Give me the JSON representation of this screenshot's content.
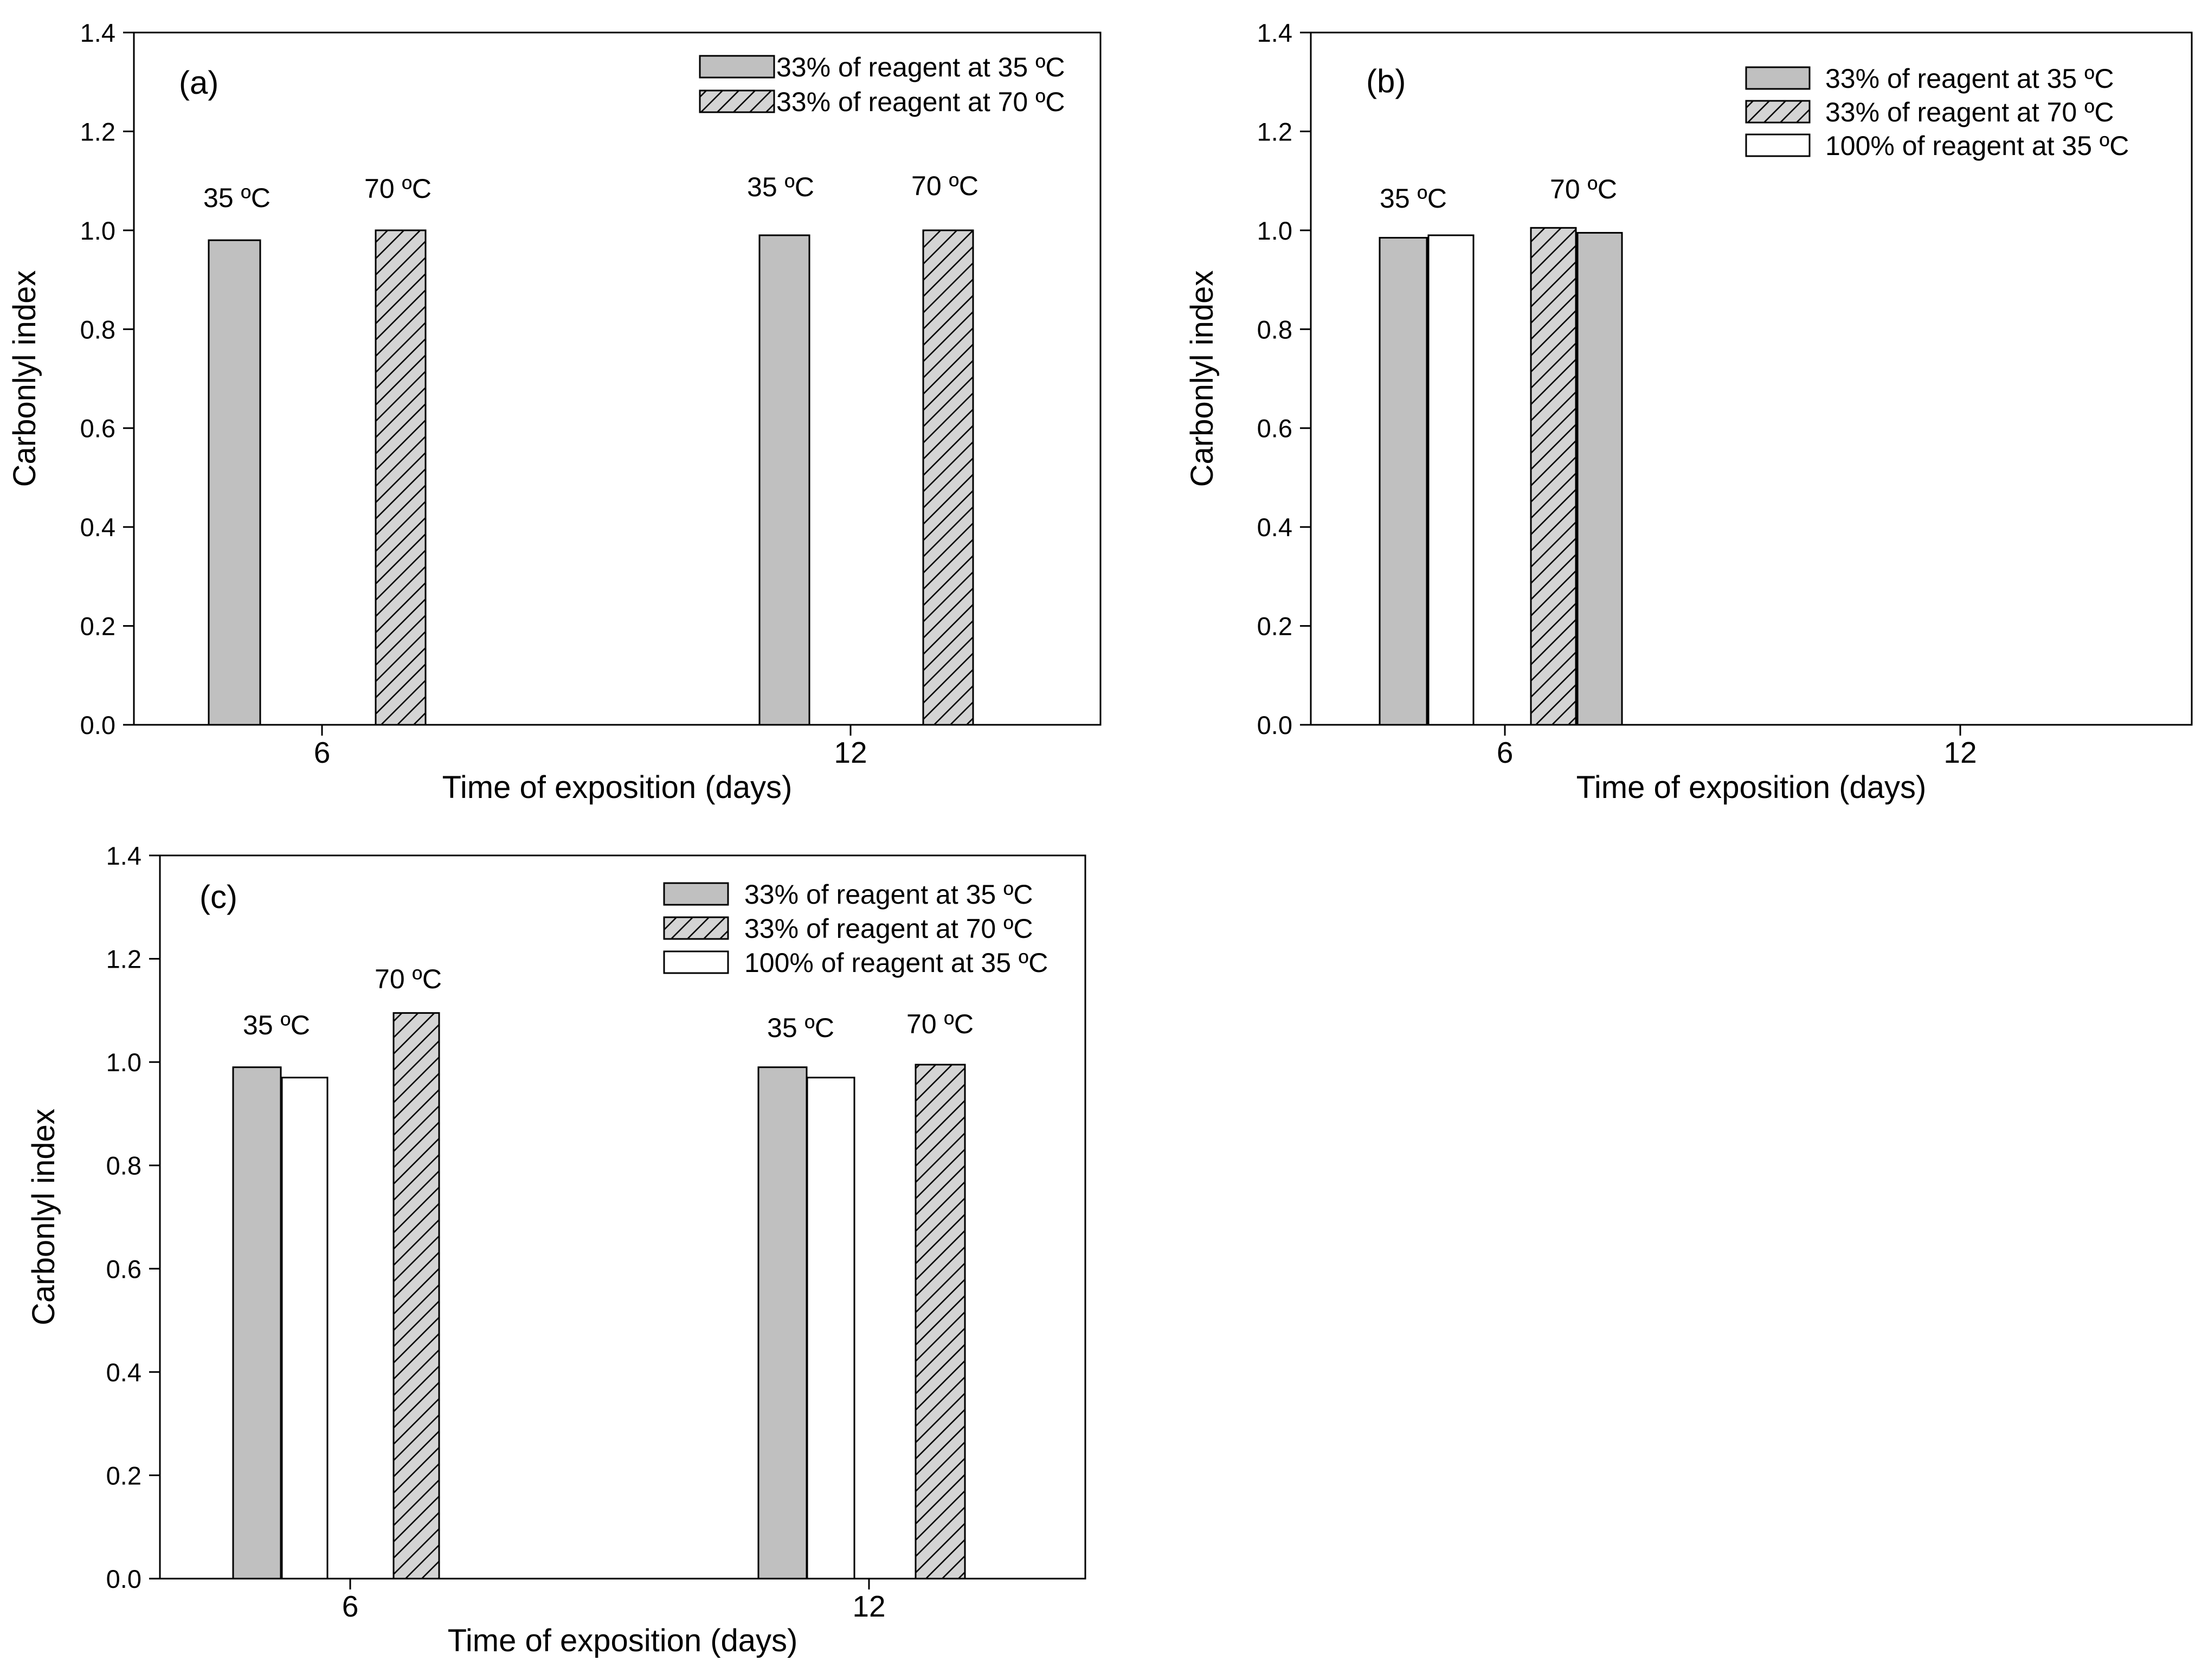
{
  "figure": {
    "style": {
      "bar_fill": "#c0c0c0",
      "hatch_fill": "#d4d4d4",
      "white_fill": "#ffffff",
      "stroke": "#000000"
    },
    "series_legend": {
      "s35": "33% of reagent at 35 ºC",
      "s70": "33% of reagent at 70 ºC",
      "s100": "100% of reagent at 35 ºC"
    }
  },
  "chart_data": [
    {
      "id": "a",
      "type": "bar",
      "panel_label": "(a)",
      "xlabel": "Time of exposition (days)",
      "ylabel": "Carbonlyl index",
      "ylim": [
        0,
        1.4
      ],
      "yticks": [
        "0.0",
        "0.2",
        "0.4",
        "0.6",
        "0.8",
        "1.0",
        "1.2",
        "1.4"
      ],
      "categories": [
        "6",
        "12"
      ],
      "legend": [
        "33% of reagent at 35 ºC",
        "33% of reagent at 70 ºC"
      ],
      "bars": [
        {
          "series": "33% of reagent at 35 ºC",
          "category": "6",
          "value": 0.98
        },
        {
          "series": "33% of reagent at 70 ºC",
          "category": "6",
          "value": 1.0
        },
        {
          "series": "33% of reagent at 35 ºC",
          "category": "12",
          "value": 0.99
        },
        {
          "series": "33% of reagent at 70 ºC",
          "category": "12",
          "value": 1.0
        }
      ],
      "annotations": [
        "35 ºC",
        "70 ºC",
        "35 ºC",
        "70 ºC"
      ]
    },
    {
      "id": "b",
      "type": "bar",
      "panel_label": "(b)",
      "xlabel": "Time of exposition (days)",
      "ylabel": "Carbonlyl index",
      "ylim": [
        0,
        1.4
      ],
      "yticks": [
        "0.0",
        "0.2",
        "0.4",
        "0.6",
        "0.8",
        "1.0",
        "1.2",
        "1.4"
      ],
      "categories": [
        "6",
        "12"
      ],
      "legend": [
        "33% of reagent at 35 ºC",
        "33% of reagent at 70 ºC",
        "100% of reagent at 35 ºC"
      ],
      "bars": [
        {
          "series": "33% of reagent at 35 ºC",
          "category": "6",
          "value": 0.985
        },
        {
          "series": "100% of reagent at 35 ºC",
          "category": "6",
          "value": 0.99
        },
        {
          "series": "33% of reagent at 70 ºC",
          "category": "6",
          "value": 1.005
        },
        {
          "series": "33% of reagent at 35 ºC",
          "category": "6",
          "value": 0.995
        }
      ],
      "annotations": [
        "35 ºC",
        "70 ºC"
      ]
    },
    {
      "id": "c",
      "type": "bar",
      "panel_label": "(c)",
      "xlabel": "Time of exposition (days)",
      "ylabel": "Carbonlyl index",
      "ylim": [
        0,
        1.4
      ],
      "yticks": [
        "0.0",
        "0.2",
        "0.4",
        "0.6",
        "0.8",
        "1.0",
        "1.2",
        "1.4"
      ],
      "categories": [
        "6",
        "12"
      ],
      "legend": [
        "33% of reagent at 35 ºC",
        "33% of reagent at 70 ºC",
        "100% of reagent at 35 ºC"
      ],
      "bars": [
        {
          "series": "33% of reagent at 35 ºC",
          "category": "6",
          "value": 0.99
        },
        {
          "series": "100% of reagent at 35 ºC",
          "category": "6",
          "value": 0.97
        },
        {
          "series": "33% of reagent at 70 ºC",
          "category": "6",
          "value": 1.095
        },
        {
          "series": "33% of reagent at 35 ºC",
          "category": "12",
          "value": 0.99
        },
        {
          "series": "100% of reagent at 35 ºC",
          "category": "12",
          "value": 0.97
        },
        {
          "series": "33% of reagent at 70 ºC",
          "category": "12",
          "value": 0.995
        }
      ],
      "annotations": [
        "35 ºC",
        "70 ºC",
        "35 ºC",
        "70 ºC"
      ]
    }
  ]
}
